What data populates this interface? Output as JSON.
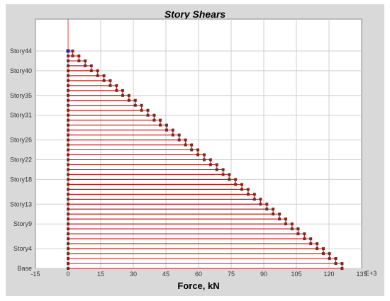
{
  "chart_data": {
    "type": "line",
    "title": "Story Shears",
    "xlabel": "Force, kN",
    "x_multiplier_label": "E+3",
    "xlim": [
      -15,
      135
    ],
    "x_ticks": [
      -15,
      0,
      15,
      30,
      45,
      60,
      75,
      90,
      105,
      120,
      135
    ],
    "y_tick_labels": [
      "Base",
      "Story4",
      "Story9",
      "Story13",
      "Story18",
      "Story22",
      "Story26",
      "Story31",
      "Story35",
      "Story40",
      "Story44"
    ],
    "y_tick_levels": [
      0,
      4,
      9,
      13,
      18,
      22,
      26,
      31,
      35,
      40,
      44
    ],
    "levels": 44,
    "shear_at_level": [
      126,
      123.1,
      120.2,
      117.4,
      114.5,
      111.6,
      108.7,
      105.8,
      103,
      100.1,
      97.2,
      94.3,
      91.4,
      88.5,
      85.7,
      82.8,
      79.9,
      77,
      74.1,
      71.3,
      68.4,
      65.5,
      62.6,
      59.7,
      56.8,
      54,
      51.1,
      48.2,
      45.3,
      42.4,
      39.6,
      36.7,
      33.8,
      30.9,
      28,
      25.1,
      22.3,
      19.4,
      16.5,
      13.6,
      10.7,
      7.9,
      5,
      2.1,
      0
    ],
    "grid": true,
    "colors": {
      "series": "#cc1111",
      "marker": "#7a2a20",
      "top_marker": "#1f2fb0",
      "plot_bg": "#ffffff",
      "frame_bg": "#d9d9d9"
    }
  }
}
